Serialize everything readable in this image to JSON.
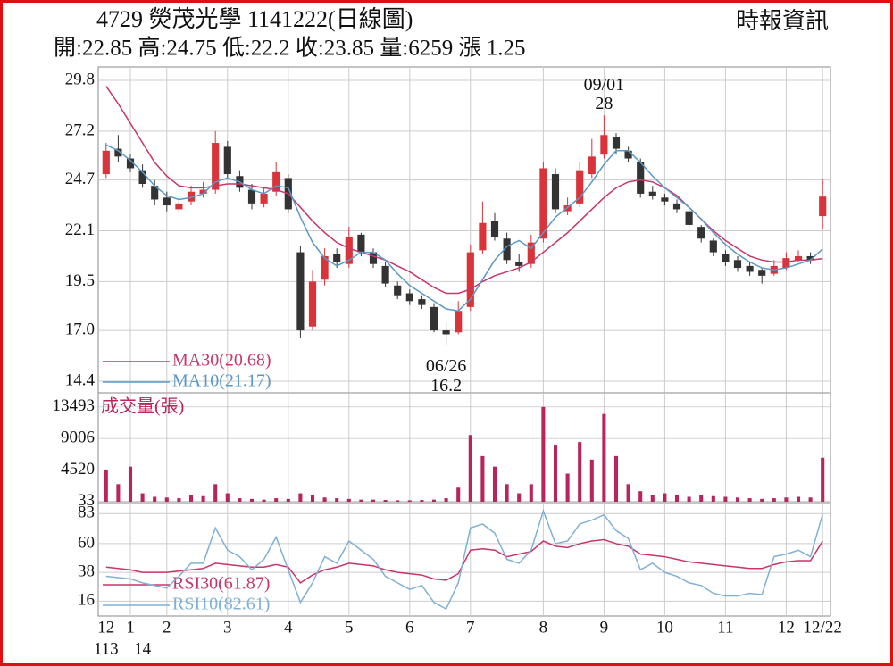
{
  "header": {
    "title": "4729  熒茂光學 1141222(日線圖)",
    "source": "時報資訊",
    "summary": "開:22.85 高:24.75 低:22.2 收:23.85 量:6259 漲 1.25"
  },
  "chart_data": [
    {
      "type": "candlestick",
      "up_color": "#d8343a",
      "down_color": "#333333",
      "grid": true,
      "ylim": [
        14.4,
        29.8
      ],
      "yticks": [
        29.8,
        27.2,
        24.7,
        22.1,
        19.5,
        {
          "value": 17,
          "label": "17.0"
        },
        14.4
      ],
      "open": [
        25.0,
        26.3,
        25.8,
        25.2,
        24.4,
        23.8,
        23.2,
        23.6,
        24.0,
        24.2,
        26.4,
        24.9,
        24.2,
        23.5,
        24.1,
        24.8,
        21.0,
        17.2,
        19.6,
        20.9,
        20.4,
        21.9,
        21.0,
        20.3,
        19.3,
        18.9,
        18.6,
        18.2,
        17.0,
        16.9,
        18.2,
        21.1,
        22.6,
        21.7,
        20.5,
        20.4,
        21.7,
        25.0,
        23.1,
        23.5,
        25.0,
        26.0,
        26.9,
        26.2,
        25.6,
        24.1,
        23.8,
        23.5,
        23.1,
        22.3,
        21.6,
        20.9,
        20.6,
        20.3,
        20.1,
        19.9,
        20.2,
        20.6,
        20.8,
        22.85
      ],
      "high": [
        26.6,
        27.0,
        26.0,
        25.5,
        24.7,
        24.1,
        23.8,
        24.4,
        24.6,
        27.2,
        26.7,
        25.2,
        24.5,
        24.3,
        25.6,
        25.0,
        21.3,
        20.1,
        21.2,
        21.2,
        22.3,
        22.0,
        21.2,
        20.5,
        19.5,
        19.1,
        18.8,
        18.4,
        17.4,
        18.5,
        21.4,
        23.6,
        23.0,
        22.0,
        20.9,
        21.9,
        25.6,
        25.3,
        23.8,
        25.6,
        26.8,
        28.0,
        27.1,
        26.4,
        25.8,
        24.4,
        24.0,
        23.7,
        23.2,
        22.4,
        21.7,
        21.1,
        20.8,
        20.5,
        20.2,
        20.6,
        21.0,
        21.1,
        21.0,
        24.75
      ],
      "low": [
        24.8,
        25.6,
        25.1,
        24.3,
        23.4,
        23.1,
        23.0,
        23.4,
        23.8,
        24.0,
        24.8,
        24.1,
        23.2,
        23.3,
        23.9,
        23.0,
        16.6,
        17.0,
        19.3,
        20.2,
        20.2,
        20.8,
        20.2,
        19.2,
        18.6,
        18.3,
        18.1,
        16.9,
        16.2,
        16.8,
        18.0,
        20.9,
        21.6,
        20.4,
        20.0,
        20.2,
        21.5,
        23.0,
        22.9,
        23.3,
        24.8,
        25.8,
        26.0,
        25.6,
        23.8,
        23.7,
        23.4,
        23.0,
        22.2,
        21.5,
        20.8,
        20.3,
        20.0,
        19.8,
        19.4,
        19.8,
        20.1,
        20.5,
        20.4,
        22.2
      ],
      "close": [
        26.2,
        25.9,
        25.3,
        24.5,
        23.7,
        23.4,
        23.5,
        24.1,
        24.2,
        26.6,
        25.0,
        24.3,
        23.5,
        24.0,
        25.1,
        23.2,
        17.0,
        19.5,
        20.8,
        20.5,
        21.8,
        21.0,
        20.4,
        19.4,
        18.8,
        18.5,
        18.3,
        17.0,
        16.8,
        18.0,
        21.0,
        22.5,
        21.8,
        20.6,
        20.3,
        21.5,
        25.3,
        23.2,
        23.4,
        25.2,
        25.9,
        27.0,
        26.3,
        25.8,
        24.0,
        23.9,
        23.6,
        23.2,
        22.4,
        21.7,
        21.0,
        20.5,
        20.2,
        20.0,
        19.8,
        20.3,
        20.7,
        20.8,
        20.6,
        23.85
      ],
      "series": [
        {
          "name": "MA30",
          "legend_label": "MA30(20.68)",
          "color": "#c8356a",
          "values": [
            29.5,
            28.6,
            27.6,
            26.6,
            25.6,
            24.9,
            24.4,
            24.3,
            24.3,
            24.4,
            24.5,
            24.5,
            24.4,
            24.3,
            24.2,
            24.0,
            23.3,
            22.6,
            22.0,
            21.5,
            21.2,
            21.0,
            20.8,
            20.6,
            20.3,
            20.0,
            19.6,
            19.2,
            18.9,
            18.9,
            19.1,
            19.5,
            19.8,
            20.0,
            20.2,
            20.5,
            21.0,
            21.5,
            22.0,
            22.6,
            23.2,
            23.8,
            24.3,
            24.6,
            24.7,
            24.6,
            24.3,
            23.9,
            23.3,
            22.7,
            22.1,
            21.6,
            21.2,
            20.8,
            20.6,
            20.5,
            20.5,
            20.6,
            20.6,
            20.68
          ]
        },
        {
          "name": "MA10",
          "legend_label": "MA10(21.17)",
          "color": "#5b98c6",
          "values": [
            26.5,
            26.2,
            25.7,
            25.1,
            24.4,
            23.9,
            23.7,
            23.8,
            24.0,
            24.6,
            24.8,
            24.6,
            24.2,
            24.0,
            24.4,
            24.3,
            22.8,
            21.5,
            20.7,
            20.3,
            20.6,
            21.0,
            21.0,
            20.6,
            19.9,
            19.3,
            18.9,
            18.5,
            18.1,
            18.0,
            18.6,
            19.6,
            20.6,
            21.3,
            21.6,
            21.2,
            22.0,
            22.8,
            23.3,
            23.8,
            24.6,
            25.5,
            26.2,
            26.2,
            25.6,
            24.9,
            24.3,
            23.8,
            23.3,
            22.7,
            22.0,
            21.4,
            20.9,
            20.5,
            20.2,
            20.1,
            20.2,
            20.4,
            20.6,
            21.17
          ]
        }
      ],
      "annotations": [
        {
          "date": "09/01",
          "value": 28
        },
        {
          "date": "06/26",
          "value": 16.2
        }
      ]
    },
    {
      "type": "bar",
      "label": "成交量(張)",
      "color": "#b8245c",
      "ylim": [
        0,
        15000
      ],
      "yticks": [
        13493,
        9006,
        4520,
        33
      ],
      "values": [
        4500,
        2500,
        5000,
        1200,
        700,
        600,
        500,
        1000,
        800,
        2500,
        1200,
        500,
        400,
        300,
        500,
        400,
        1200,
        900,
        600,
        500,
        400,
        300,
        300,
        250,
        200,
        200,
        250,
        300,
        500,
        2000,
        9500,
        6500,
        5000,
        2500,
        1200,
        2500,
        13493,
        8000,
        4000,
        8500,
        6000,
        12500,
        6500,
        2500,
        1500,
        1000,
        1200,
        900,
        700,
        1000,
        800,
        700,
        600,
        500,
        400,
        500,
        600,
        700,
        600,
        6259
      ]
    },
    {
      "type": "line",
      "grid": true,
      "ylim": [
        6,
        90
      ],
      "yticks": [
        83,
        60,
        38,
        16
      ],
      "categories": [
        "12",
        null,
        "1",
        null,
        null,
        "2",
        null,
        null,
        null,
        null,
        "3",
        null,
        null,
        null,
        null,
        "4",
        null,
        null,
        null,
        null,
        "5",
        null,
        null,
        null,
        null,
        "6",
        null,
        null,
        null,
        null,
        "7",
        null,
        null,
        null,
        null,
        null,
        "8",
        null,
        null,
        null,
        null,
        "9",
        null,
        null,
        null,
        null,
        "10",
        null,
        null,
        null,
        null,
        "11",
        null,
        null,
        null,
        null,
        "12",
        null,
        null,
        "12/22"
      ],
      "categories_row2": [
        "113",
        null,
        null,
        "14",
        null,
        null,
        null,
        null,
        null,
        null,
        null,
        null,
        null,
        null,
        null,
        null,
        null,
        null,
        null,
        null,
        null,
        null,
        null,
        null,
        null,
        null,
        null,
        null,
        null,
        null,
        null,
        null,
        null,
        null,
        null,
        null,
        null,
        null,
        null,
        null,
        null,
        null,
        null,
        null,
        null,
        null,
        null,
        null,
        null,
        null,
        null,
        null,
        null,
        null,
        null,
        null,
        null,
        null,
        null,
        null
      ],
      "series": [
        {
          "name": "RSI30",
          "legend_label": "RSI30(61.87)",
          "color": "#c8356a",
          "values": [
            42,
            41,
            40,
            38,
            38,
            38,
            39,
            40,
            41,
            45,
            44,
            43,
            42,
            42,
            44,
            42,
            30,
            36,
            40,
            42,
            45,
            44,
            43,
            40,
            38,
            37,
            36,
            33,
            32,
            37,
            55,
            56,
            55,
            50,
            52,
            54,
            62,
            58,
            57,
            60,
            62,
            63,
            60,
            58,
            52,
            51,
            50,
            48,
            46,
            45,
            44,
            43,
            42,
            41,
            41,
            44,
            46,
            47,
            47,
            61.87
          ]
        },
        {
          "name": "RSI10",
          "legend_label": "RSI10(82.61)",
          "color": "#7fb0d6",
          "values": [
            35,
            34,
            33,
            30,
            28,
            26,
            35,
            45,
            45,
            72,
            55,
            50,
            40,
            48,
            65,
            40,
            15,
            30,
            50,
            45,
            62,
            55,
            48,
            35,
            30,
            25,
            28,
            15,
            10,
            30,
            72,
            75,
            68,
            48,
            45,
            55,
            85,
            60,
            62,
            75,
            78,
            82,
            70,
            64,
            40,
            45,
            38,
            35,
            30,
            28,
            22,
            20,
            20,
            22,
            21,
            50,
            52,
            55,
            50,
            82.61
          ]
        }
      ]
    }
  ]
}
